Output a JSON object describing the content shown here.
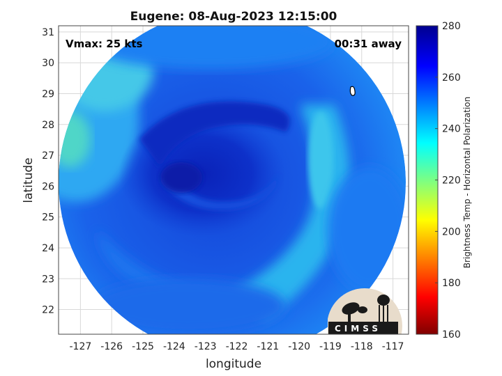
{
  "title": "Eugene: 08-Aug-2023 12:15:00",
  "vmax_label": "Vmax: 25 kts",
  "away_label": "00:31 away",
  "logo_text": "CIMSS",
  "map": {
    "xlabel": "longitude",
    "ylabel": "latitude",
    "xlim": [
      -127.7,
      -116.5
    ],
    "ylim": [
      21.2,
      31.2
    ],
    "xticks": [
      -127,
      -126,
      -125,
      -124,
      -123,
      -122,
      -121,
      -120,
      -119,
      -118,
      -117
    ],
    "yticks": [
      22,
      23,
      24,
      25,
      26,
      27,
      28,
      29,
      30,
      31
    ],
    "grid": true
  },
  "colorbar": {
    "label": "Brightness Temp - Horizontal Polarization",
    "range": [
      160,
      280
    ],
    "ticks": [
      160,
      180,
      200,
      220,
      240,
      260,
      280
    ],
    "colormap": "jet"
  },
  "scene": {
    "swath_center": [
      -122.0,
      26.0
    ],
    "swath_radius_deg": 5.6,
    "storm_center": [
      -123.2,
      26.0
    ],
    "background_temp_range": [
      245,
      265
    ],
    "core_temp": 275
  },
  "colors": {
    "deep_blue": "#0a2dc8",
    "mid_blue": "#1455e6",
    "light_blue": "#1a7cf5",
    "cyan": "#3fc3f0",
    "green_cyan": "#4fdcb0"
  }
}
